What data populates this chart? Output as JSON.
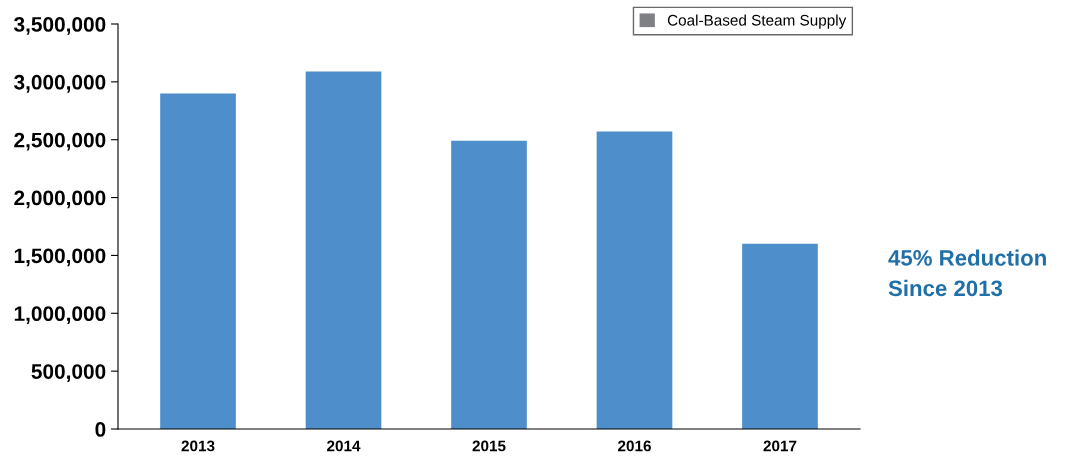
{
  "chart_data": {
    "type": "bar",
    "categories": [
      "2013",
      "2014",
      "2015",
      "2016",
      "2017"
    ],
    "series": [
      {
        "name": "Coal-Based Steam Supply",
        "color": "#7f8083",
        "values": [
          null,
          null,
          null,
          null,
          null
        ]
      },
      {
        "color": "#4d8ecb",
        "values": [
          2900000,
          3090000,
          2490000,
          2570000,
          1600000
        ]
      }
    ],
    "ylim": [
      0,
      3500000
    ],
    "yticks": [
      {
        "value": 0,
        "label": "0"
      },
      {
        "value": 500000,
        "label": "500,000"
      },
      {
        "value": 1000000,
        "label": "1,000,000"
      },
      {
        "value": 1500000,
        "label": "1,500,000"
      },
      {
        "value": 2000000,
        "label": "2,000,000"
      },
      {
        "value": 2500000,
        "label": "2,500,000"
      },
      {
        "value": 3000000,
        "label": "3,000,000"
      },
      {
        "value": 3500000,
        "label": "3,500,000"
      }
    ],
    "grid": false,
    "legend": "top right",
    "annotations": [
      "45% Reduction\nSince 2013"
    ]
  }
}
